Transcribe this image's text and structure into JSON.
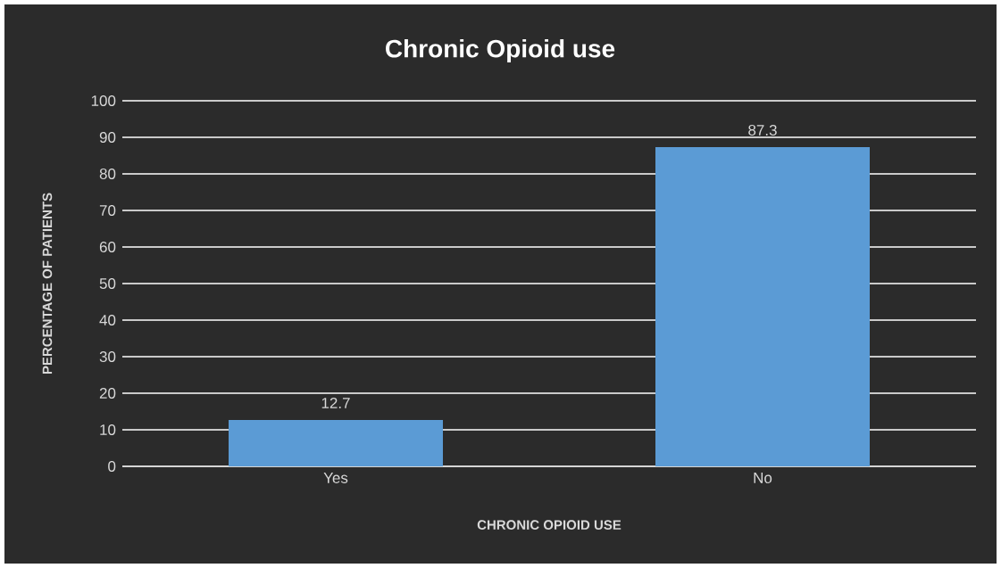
{
  "chart_data": {
    "type": "bar",
    "title": "Chronic Opioid use",
    "xlabel": "CHRONIC OPIOID USE",
    "ylabel": "PERCENTAGE OF PATIENTS",
    "categories": [
      "Yes",
      "No"
    ],
    "values": [
      12.7,
      87.3
    ],
    "color": "#5b9bd5",
    "ylim": [
      0,
      100
    ],
    "yticks": [
      0,
      10,
      20,
      30,
      40,
      50,
      60,
      70,
      80,
      90,
      100
    ],
    "grid": "y",
    "data_labels": true
  }
}
